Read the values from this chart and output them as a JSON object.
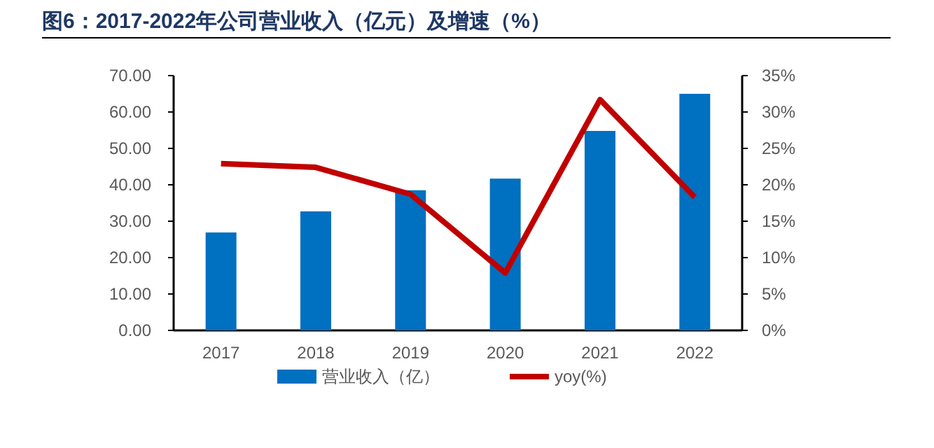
{
  "chart_data": {
    "type": "bar",
    "title": "图6：2017-2022年公司营业收入（亿元）及增速（%）",
    "categories": [
      "2017",
      "2018",
      "2019",
      "2020",
      "2021",
      "2022"
    ],
    "series": [
      {
        "name": "营业收入（亿）",
        "color": "#0070c0",
        "values": [
          26.9,
          32.7,
          38.5,
          41.7,
          54.8,
          65.0
        ]
      },
      {
        "name": "yoy(%)",
        "type": "line",
        "axis": "y2",
        "color": "#c00000",
        "values": [
          22.9,
          22.4,
          18.7,
          7.9,
          31.7,
          18.3
        ]
      }
    ],
    "ylim": [
      0,
      70
    ],
    "yticks": [
      {
        "value": 0,
        "label": "0.00"
      },
      {
        "value": 10,
        "label": "10.00"
      },
      {
        "value": 20,
        "label": "20.00"
      },
      {
        "value": 30,
        "label": "30.00"
      },
      {
        "value": 40,
        "label": "40.00"
      },
      {
        "value": 50,
        "label": "50.00"
      },
      {
        "value": 60,
        "label": "60.00"
      },
      {
        "value": 70,
        "label": "70.00"
      }
    ],
    "y2lim": [
      0,
      35
    ],
    "y2ticks": [
      {
        "value": 0,
        "label": "0%"
      },
      {
        "value": 5,
        "label": "5%"
      },
      {
        "value": 10,
        "label": "10%"
      },
      {
        "value": 15,
        "label": "15%"
      },
      {
        "value": 20,
        "label": "20%"
      },
      {
        "value": 25,
        "label": "25%"
      },
      {
        "value": 30,
        "label": "30%"
      },
      {
        "value": 35,
        "label": "35%"
      }
    ],
    "grid": false,
    "legend": "bottom",
    "marker": "none",
    "line_style": "solid"
  }
}
